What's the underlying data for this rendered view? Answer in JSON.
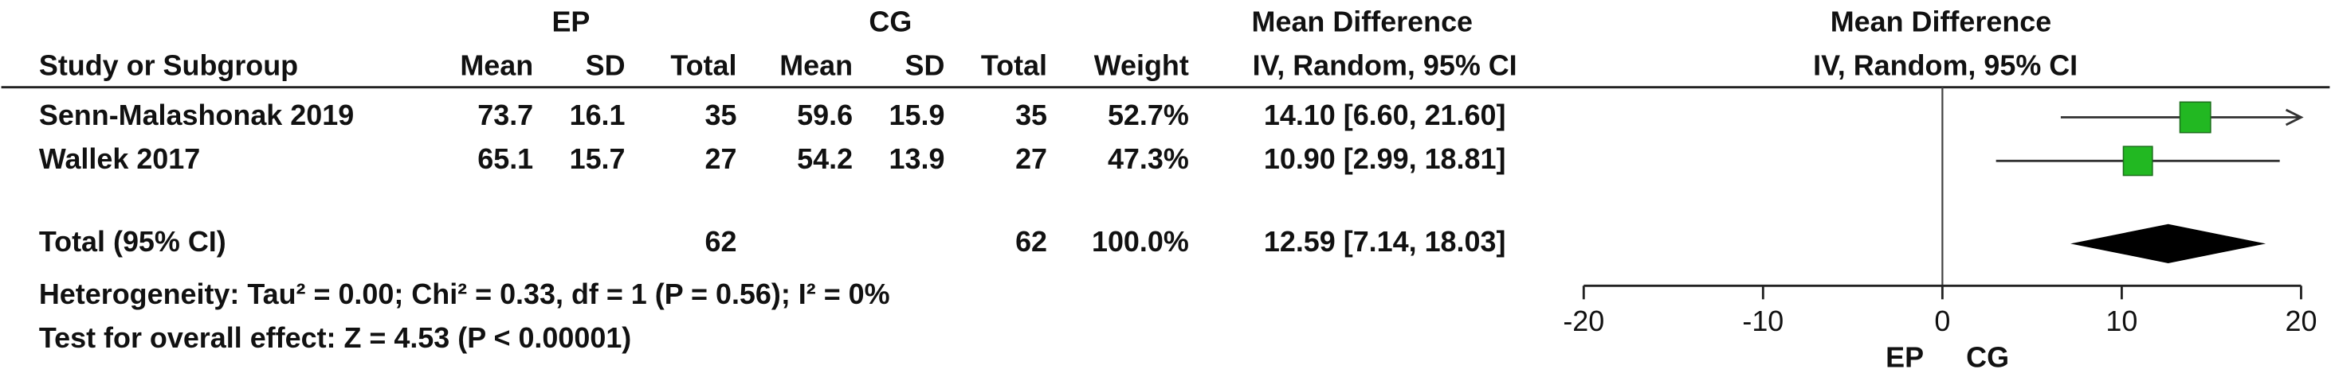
{
  "chart_data": {
    "type": "forest",
    "headers": {
      "group_ep": "EP",
      "group_cg": "CG",
      "effect_title": "Mean Difference",
      "study": "Study or Subgroup",
      "ep_mean": "Mean",
      "ep_sd": "SD",
      "ep_total": "Total",
      "cg_mean": "Mean",
      "cg_sd": "SD",
      "cg_total": "Total",
      "weight": "Weight",
      "effect_method": "IV, Random, 95% CI",
      "plot_title": "Mean Difference",
      "plot_method": "IV, Random, 95% CI"
    },
    "studies": [
      "Senn-Malashonak 2019",
      "Wallek 2017"
    ],
    "ep_mean": [
      73.7,
      65.1
    ],
    "ep_sd": [
      16.1,
      15.7
    ],
    "ep_total": [
      35,
      27
    ],
    "cg_mean": [
      59.6,
      54.2
    ],
    "cg_sd": [
      15.9,
      13.9
    ],
    "cg_total": [
      35,
      27
    ],
    "weight": {
      "values": [
        52.7,
        47.3
      ],
      "value_labels": [
        "52.7%",
        "47.3%"
      ]
    },
    "mean_difference": {
      "values": [
        14.1,
        10.9
      ],
      "ci_low": [
        6.6,
        2.99
      ],
      "ci_high": [
        21.6,
        18.81
      ],
      "value_labels": [
        "14.10 [6.60, 21.60]",
        "10.90 [2.99, 18.81]"
      ]
    },
    "total": {
      "label": "Total (95% CI)",
      "ep_total": 62,
      "cg_total": 62,
      "weight": 100.0,
      "weight_label": "100.0%",
      "value": 12.59,
      "ci_low": 7.14,
      "ci_high": 18.03,
      "value_label": "12.59 [7.14, 18.03]"
    },
    "heterogeneity": "Heterogeneity: Tau² = 0.00; Chi² = 0.33, df = 1 (P = 0.56); I² = 0%",
    "overall_effect": "Test for overall effect: Z = 4.53 (P < 0.00001)",
    "xlim": [
      -20,
      20
    ],
    "xticks": [
      -20,
      -10,
      0,
      10,
      20
    ],
    "favours_left": "EP",
    "favours_right": "CG",
    "color": "#22b822"
  }
}
